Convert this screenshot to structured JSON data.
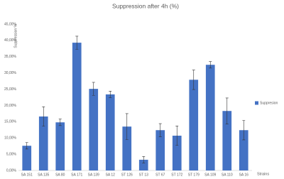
{
  "chart_data": {
    "type": "bar",
    "title": "Suppression after 4h (%)",
    "y_label": "Suppression %",
    "x_label": "Strains",
    "categories": [
      "SA 151",
      "SA 135",
      "SA 80",
      "SA 171",
      "SA 139",
      "SA 12",
      "ST 126",
      "ST 13",
      "ST 67",
      "ST 172",
      "ST 179",
      "SA 109",
      "SA 110",
      "SA 16"
    ],
    "series": [
      {
        "name": "Suppresion",
        "color": "#4472c4",
        "values": [
          7.6,
          16.6,
          14.8,
          39.3,
          25.1,
          23.4,
          13.5,
          3.3,
          12.4,
          10.7,
          27.9,
          32.5,
          18.3,
          12.4
        ],
        "errors": [
          1,
          3,
          1,
          2,
          2,
          1,
          4,
          1,
          2,
          3,
          3,
          1,
          4,
          3
        ]
      }
    ],
    "ylim": [
      0,
      45
    ],
    "yticks": [
      {
        "value": 0,
        "label": "0,00%"
      },
      {
        "value": 5,
        "label": "5,00%"
      },
      {
        "value": 10,
        "label": "10,00%"
      },
      {
        "value": 15,
        "label": "15,00%"
      },
      {
        "value": 20,
        "label": "20,00%"
      },
      {
        "value": 25,
        "label": "25,00%"
      },
      {
        "value": 30,
        "label": "30,00%"
      },
      {
        "value": 35,
        "label": "35,00%"
      },
      {
        "value": 40,
        "label": "40,00%"
      },
      {
        "value": 45,
        "label": "45,00%"
      }
    ],
    "grid": false,
    "legend": "right"
  }
}
